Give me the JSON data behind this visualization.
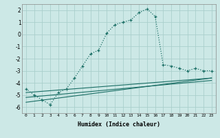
{
  "xlabel": "Humidex (Indice chaleur)",
  "bg_color": "#cce8e6",
  "grid_color": "#aacfcc",
  "line_color": "#1a6e65",
  "xlim": [
    -0.5,
    23.5
  ],
  "ylim": [
    -6.5,
    2.5
  ],
  "yticks": [
    -6,
    -5,
    -4,
    -3,
    -2,
    -1,
    0,
    1,
    2
  ],
  "xticks": [
    0,
    1,
    2,
    3,
    4,
    5,
    6,
    7,
    8,
    9,
    10,
    11,
    12,
    13,
    14,
    15,
    16,
    17,
    18,
    19,
    20,
    21,
    22,
    23
  ],
  "curve1_x": [
    0,
    1,
    2,
    3,
    4,
    5,
    6,
    7,
    8,
    9,
    10,
    11,
    12,
    13,
    14,
    15,
    16,
    17,
    18,
    19,
    20,
    21,
    22,
    23
  ],
  "curve1_y": [
    -4.5,
    -5.0,
    -5.4,
    -5.8,
    -4.8,
    -4.5,
    -3.6,
    -2.6,
    -1.6,
    -1.3,
    0.1,
    0.8,
    1.0,
    1.2,
    1.8,
    2.1,
    1.5,
    -2.5,
    -2.6,
    -2.8,
    -3.0,
    -2.8,
    -3.0,
    -3.0
  ],
  "line2_x": [
    0,
    23
  ],
  "line2_y": [
    -4.8,
    -3.6
  ],
  "line3_x": [
    0,
    23
  ],
  "line3_y": [
    -5.2,
    -3.8
  ],
  "line4_x": [
    0,
    23
  ],
  "line4_y": [
    -5.6,
    -3.6
  ]
}
